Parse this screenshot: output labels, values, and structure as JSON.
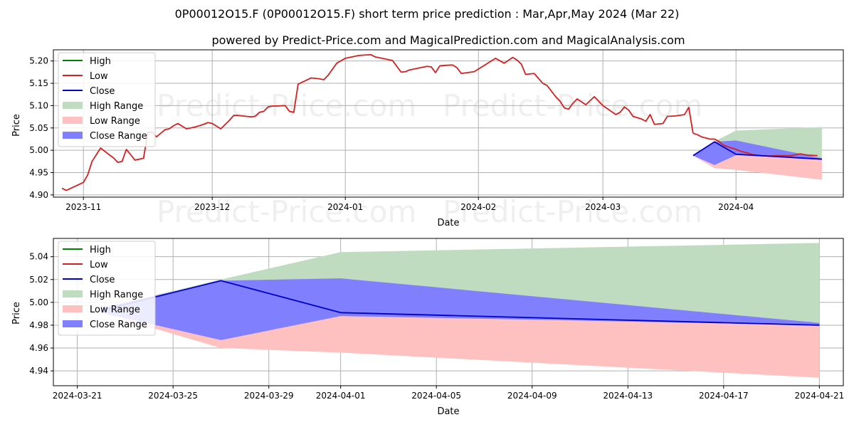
{
  "title": "0P00012O15.F (0P00012O15.F) short term price prediction : Mar,Apr,May 2024 (Mar 22)",
  "subtitle": "powered by Predict-Price.com and MagicalPrediction.com and MagicalAnalysis.com",
  "watermark": "Predict-Price.com",
  "colors": {
    "high": "#008000",
    "low": "#d62020",
    "close": "#0000cc",
    "high_range": "#c0dcc0",
    "low_range": "#ffc0c0",
    "close_range": "#8080ff"
  },
  "chart_data": [
    {
      "type": "line",
      "xlabel": "Date",
      "ylabel": "Price",
      "xlim": [
        "2023-10-25",
        "2024-04-26"
      ],
      "ylim": [
        4.895,
        5.225
      ],
      "x_ticks": [
        "2023-11-01",
        "2023-12-01",
        "2024-01-01",
        "2024-02-01",
        "2024-03-01",
        "2024-04-01"
      ],
      "x_tick_labels": [
        "2023-11",
        "2023-12",
        "2024-01",
        "2024-02",
        "2024-03",
        "2024-04"
      ],
      "y_ticks": [
        4.9,
        4.95,
        5.0,
        5.05,
        5.1,
        5.15,
        5.2
      ],
      "y_tick_labels": [
        "4.90",
        "4.95",
        "5.00",
        "5.05",
        "5.10",
        "5.15",
        "5.20"
      ],
      "grid": true,
      "legend": {
        "position": "top-left",
        "entries": [
          "High",
          "Low",
          "Close",
          "High Range",
          "Low Range",
          "Close Range"
        ]
      },
      "series": [
        {
          "name": "Low",
          "x": [
            "2023-10-27",
            "2023-10-28",
            "2023-11-01",
            "2023-11-02",
            "2023-11-03",
            "2023-11-05",
            "2023-11-07",
            "2023-11-08",
            "2023-11-09",
            "2023-11-10",
            "2023-11-11",
            "2023-11-13",
            "2023-11-14",
            "2023-11-15",
            "2023-11-16",
            "2023-11-17",
            "2023-11-18",
            "2023-11-20",
            "2023-11-21",
            "2023-11-22",
            "2023-11-23",
            "2023-11-25",
            "2023-11-27",
            "2023-11-28",
            "2023-11-29",
            "2023-11-30",
            "2023-12-01",
            "2023-12-03",
            "2023-12-05",
            "2023-12-06",
            "2023-12-07",
            "2023-12-08",
            "2023-12-10",
            "2023-12-11",
            "2023-12-12",
            "2023-12-13",
            "2023-12-14",
            "2023-12-15",
            "2023-12-16",
            "2023-12-18",
            "2023-12-19",
            "2023-12-20",
            "2023-12-21",
            "2023-12-24",
            "2023-12-26",
            "2023-12-27",
            "2023-12-28",
            "2023-12-30",
            "2024-01-01",
            "2024-01-02",
            "2024-01-03",
            "2024-01-04",
            "2024-01-05",
            "2024-01-07",
            "2024-01-08",
            "2024-01-09",
            "2024-01-10",
            "2024-01-11",
            "2024-01-12",
            "2024-01-14",
            "2024-01-15",
            "2024-01-16",
            "2024-01-17",
            "2024-01-20",
            "2024-01-21",
            "2024-01-22",
            "2024-01-23",
            "2024-01-24",
            "2024-01-26",
            "2024-01-27",
            "2024-01-28",
            "2024-01-31",
            "2024-02-02",
            "2024-02-05",
            "2024-02-07",
            "2024-02-09",
            "2024-02-10",
            "2024-02-11",
            "2024-02-12",
            "2024-02-14",
            "2024-02-16",
            "2024-02-17",
            "2024-02-19",
            "2024-02-20",
            "2024-02-21",
            "2024-02-22",
            "2024-02-23",
            "2024-02-24",
            "2024-02-26",
            "2024-02-28",
            "2024-03-01",
            "2024-03-04",
            "2024-03-05",
            "2024-03-06",
            "2024-03-07",
            "2024-03-08",
            "2024-03-10",
            "2024-03-11",
            "2024-03-12",
            "2024-03-13",
            "2024-03-15",
            "2024-03-16",
            "2024-03-18",
            "2024-03-20",
            "2024-03-21",
            "2024-03-22"
          ],
          "y": [
            4.915,
            4.91,
            4.928,
            4.945,
            4.975,
            5.005,
            4.99,
            4.983,
            4.973,
            4.975,
            5.002,
            4.978,
            4.98,
            4.982,
            5.04,
            5.041,
            5.03,
            5.046,
            5.048,
            5.055,
            5.06,
            5.048,
            5.052,
            5.055,
            5.058,
            5.062,
            5.06,
            5.048,
            5.067,
            5.078,
            5.078,
            5.077,
            5.075,
            5.076,
            5.085,
            5.087,
            5.097,
            5.099,
            5.099,
            5.1,
            5.087,
            5.085,
            5.148,
            5.162,
            5.16,
            5.158,
            5.168,
            5.195,
            5.206,
            5.208,
            5.21,
            5.212,
            5.213,
            5.214,
            5.209,
            5.207,
            5.205,
            5.203,
            5.201,
            5.175,
            5.176,
            5.18,
            5.182,
            5.188,
            5.187,
            5.174,
            5.189,
            5.19,
            5.191,
            5.185,
            5.172,
            5.176,
            5.188,
            5.206,
            5.195,
            5.208,
            5.202,
            5.193,
            5.17,
            5.172,
            5.15,
            5.145,
            5.12,
            5.11,
            5.095,
            5.092,
            5.105,
            5.115,
            5.102,
            5.12,
            5.1,
            5.08,
            5.085,
            5.097,
            5.09,
            5.076,
            5.07,
            5.065,
            5.08,
            5.058,
            5.06,
            5.076,
            5.077,
            5.08,
            5.096,
            5.038
          ]
        },
        {
          "name": "Low",
          "x": [
            "2024-03-22",
            "2024-03-23",
            "2024-03-24",
            "2024-03-26",
            "2024-03-27",
            "2024-03-28",
            "2024-03-29",
            "2024-03-30",
            "2024-04-01",
            "2024-04-02",
            "2024-04-04",
            "2024-04-05",
            "2024-04-07",
            "2024-04-09",
            "2024-04-10",
            "2024-04-12",
            "2024-04-14",
            "2024-04-15",
            "2024-04-16",
            "2024-04-17",
            "2024-04-18",
            "2024-04-20"
          ],
          "y": [
            5.038,
            5.035,
            5.03,
            5.025,
            5.025,
            5.02,
            5.012,
            5.008,
            5.002,
            4.998,
            4.993,
            4.99,
            4.988,
            4.987,
            4.988,
            4.988,
            4.988,
            4.99,
            4.992,
            4.99,
            4.989,
            4.988
          ]
        }
      ],
      "forecast_range": {
        "x": [
          "2024-03-22",
          "2024-03-27",
          "2024-04-01",
          "2024-04-21"
        ],
        "high_upper": [
          4.988,
          5.02,
          5.044,
          5.052
        ],
        "low_lower": [
          4.988,
          4.96,
          4.956,
          4.934
        ],
        "close_upper": [
          4.988,
          5.019,
          5.022,
          4.982
        ],
        "close_lower": [
          4.988,
          4.967,
          4.989,
          4.98
        ],
        "close": [
          4.988,
          5.019,
          4.991,
          4.98
        ]
      }
    },
    {
      "type": "line",
      "xlabel": "Date",
      "ylabel": "Price",
      "xlim": [
        "2024-03-20",
        "2024-04-22"
      ],
      "ylim": [
        4.927,
        5.056
      ],
      "x_ticks": [
        "2024-03-21",
        "2024-03-25",
        "2024-03-29",
        "2024-04-01",
        "2024-04-05",
        "2024-04-09",
        "2024-04-13",
        "2024-04-17",
        "2024-04-21"
      ],
      "x_tick_labels": [
        "2024-03-21",
        "2024-03-25",
        "2024-03-29",
        "2024-04-01",
        "2024-04-05",
        "2024-04-09",
        "2024-04-13",
        "2024-04-17",
        "2024-04-21"
      ],
      "y_ticks": [
        4.94,
        4.96,
        4.98,
        5.0,
        5.02,
        5.04
      ],
      "y_tick_labels": [
        "4.94",
        "4.96",
        "4.98",
        "5.00",
        "5.02",
        "5.04"
      ],
      "grid": true,
      "legend": {
        "position": "top-left",
        "entries": [
          "High",
          "Low",
          "Close",
          "High Range",
          "Low Range",
          "Close Range"
        ]
      },
      "forecast_range": {
        "x": [
          "2024-03-22",
          "2024-03-27",
          "2024-04-01",
          "2024-04-21"
        ],
        "high_upper": [
          4.995,
          5.02,
          5.044,
          5.052
        ],
        "low_lower": [
          4.991,
          4.96,
          4.956,
          4.934
        ],
        "close_upper": [
          4.995,
          5.019,
          5.021,
          4.982
        ],
        "close_lower": [
          4.991,
          4.967,
          4.988,
          4.98
        ],
        "close": [
          4.993,
          5.019,
          4.991,
          4.98
        ]
      }
    }
  ]
}
